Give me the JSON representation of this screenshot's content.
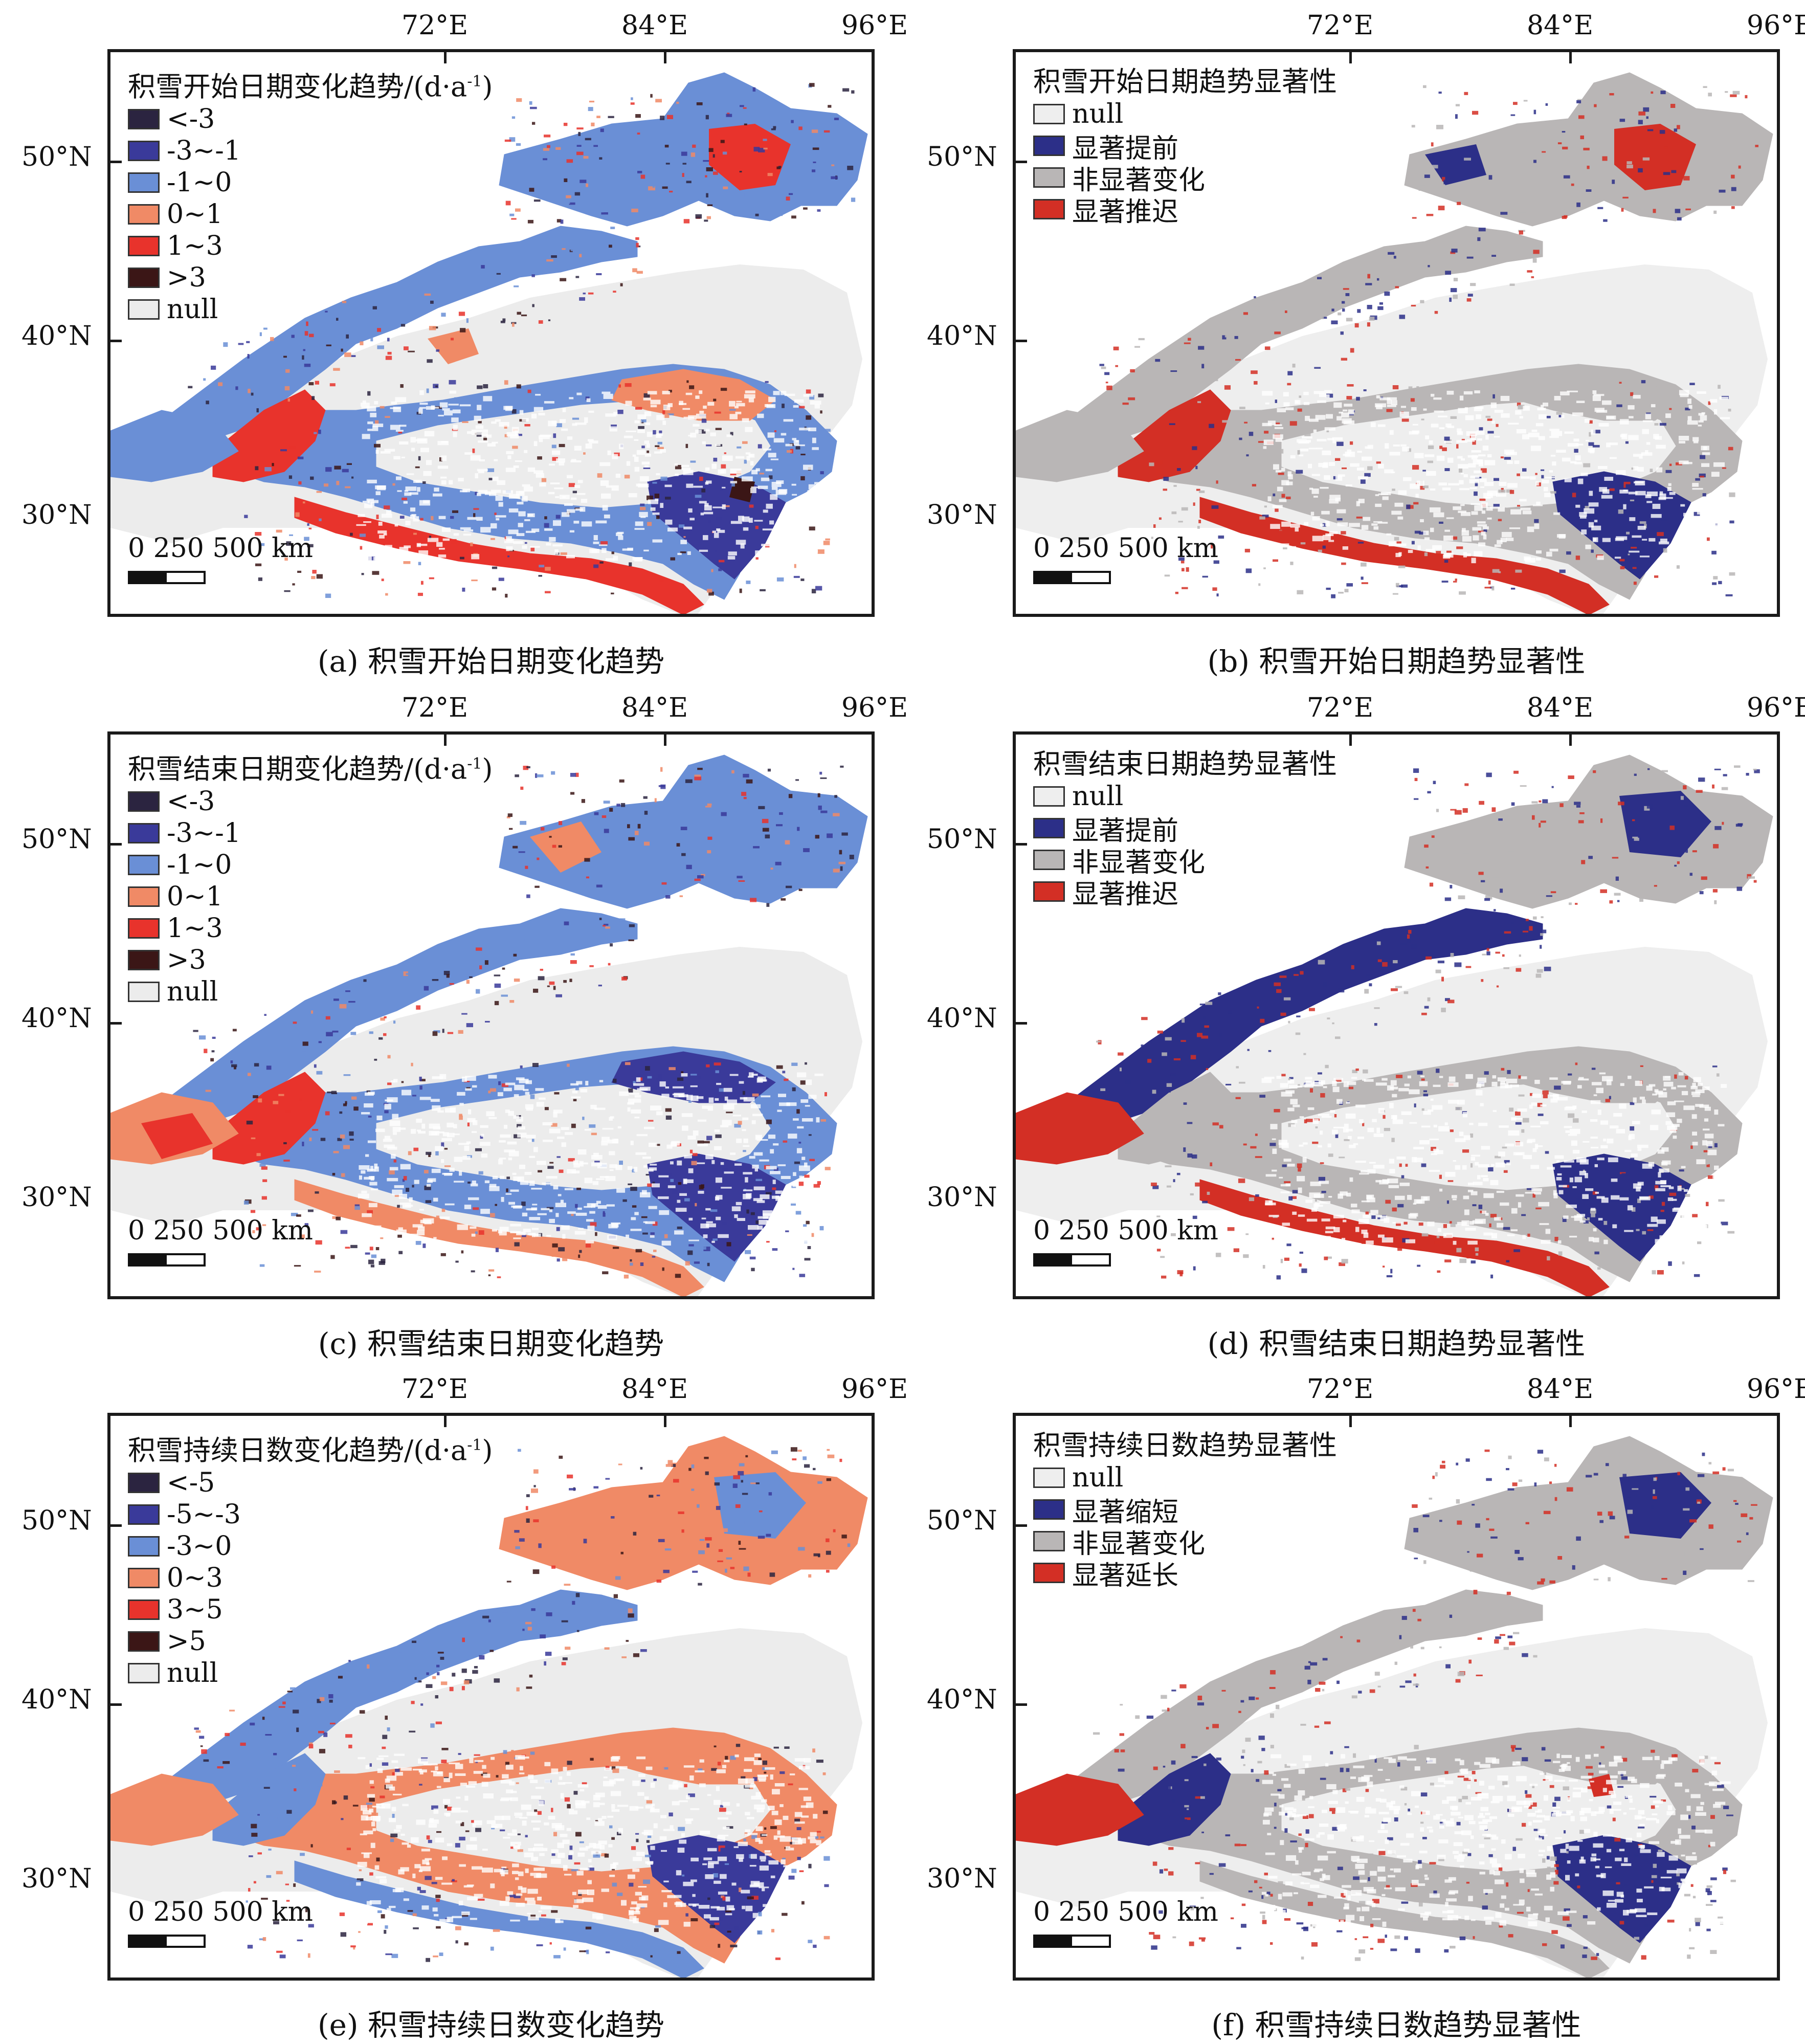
{
  "axes": {
    "lon_ticks": [
      "72°E",
      "84°E",
      "96°E"
    ],
    "lat_ticks": [
      "50°N",
      "40°N",
      "30°N"
    ]
  },
  "scale_bar": {
    "label": "0 250 500 km"
  },
  "colors": {
    "class1": "#2b2440",
    "class2": "#3a3a9a",
    "class3": "#6a8fd6",
    "class4": "#f08a66",
    "class5": "#e8332c",
    "class6": "#3b1616",
    "null": "#ececec",
    "sig_earlier": "#2c2f88",
    "sig_nonsig": "#b9b6b6",
    "sig_later": "#d32f25",
    "sig_null": "#eeeeee"
  },
  "panels": [
    {
      "id": "a",
      "legend_title": "积雪开始日期变化趋势/(d·a",
      "legend_title_sup": "-1",
      "legend_title_end": ")",
      "legend_items": [
        {
          "label": "<-3",
          "color": "#2b2440"
        },
        {
          "label": "-3~-1",
          "color": "#3a3a9a"
        },
        {
          "label": "-1~0",
          "color": "#6a8fd6"
        },
        {
          "label": "0~1",
          "color": "#f08a66"
        },
        {
          "label": "1~3",
          "color": "#e8332c"
        },
        {
          "label": ">3",
          "color": "#3b1616"
        },
        {
          "label": "null",
          "color": "#ececec"
        }
      ],
      "caption": "(a) 积雪开始日期变化趋势"
    },
    {
      "id": "b",
      "legend_title": "积雪开始日期趋势显著性",
      "legend_title_sup": "",
      "legend_title_end": "",
      "legend_items": [
        {
          "label": "null",
          "color": "#eeeeee"
        },
        {
          "label": "显著提前",
          "color": "#2c2f88"
        },
        {
          "label": "非显著变化",
          "color": "#b9b6b6"
        },
        {
          "label": "显著推迟",
          "color": "#d32f25"
        }
      ],
      "caption": "(b) 积雪开始日期趋势显著性"
    },
    {
      "id": "c",
      "legend_title": "积雪结束日期变化趋势/(d·a",
      "legend_title_sup": "-1",
      "legend_title_end": ")",
      "legend_items": [
        {
          "label": "<-3",
          "color": "#2b2440"
        },
        {
          "label": "-3~-1",
          "color": "#3a3a9a"
        },
        {
          "label": "-1~0",
          "color": "#6a8fd6"
        },
        {
          "label": "0~1",
          "color": "#f08a66"
        },
        {
          "label": "1~3",
          "color": "#e8332c"
        },
        {
          "label": ">3",
          "color": "#3b1616"
        },
        {
          "label": "null",
          "color": "#ececec"
        }
      ],
      "caption": "(c) 积雪结束日期变化趋势"
    },
    {
      "id": "d",
      "legend_title": "积雪结束日期趋势显著性",
      "legend_title_sup": "",
      "legend_title_end": "",
      "legend_items": [
        {
          "label": "null",
          "color": "#eeeeee"
        },
        {
          "label": "显著提前",
          "color": "#2c2f88"
        },
        {
          "label": "非显著变化",
          "color": "#b9b6b6"
        },
        {
          "label": "显著推迟",
          "color": "#d32f25"
        }
      ],
      "caption": "(d) 积雪结束日期趋势显著性"
    },
    {
      "id": "e",
      "legend_title": "积雪持续日数变化趋势/(d·a",
      "legend_title_sup": "-1",
      "legend_title_end": ")",
      "legend_items": [
        {
          "label": "<-5",
          "color": "#2b2440"
        },
        {
          "label": "-5~-3",
          "color": "#3a3a9a"
        },
        {
          "label": "-3~0",
          "color": "#6a8fd6"
        },
        {
          "label": "0~3",
          "color": "#f08a66"
        },
        {
          "label": "3~5",
          "color": "#e8332c"
        },
        {
          "label": ">5",
          "color": "#3b1616"
        },
        {
          "label": "null",
          "color": "#ececec"
        }
      ],
      "caption": "(e) 积雪持续日数变化趋势"
    },
    {
      "id": "f",
      "legend_title": "积雪持续日数趋势显著性",
      "legend_title_sup": "",
      "legend_title_end": "",
      "legend_items": [
        {
          "label": "null",
          "color": "#eeeeee"
        },
        {
          "label": "显著缩短",
          "color": "#2c2f88"
        },
        {
          "label": "非显著变化",
          "color": "#b9b6b6"
        },
        {
          "label": "显著延长",
          "color": "#d32f25"
        }
      ],
      "caption": "(f) 积雪持续日数趋势显著性"
    }
  ]
}
